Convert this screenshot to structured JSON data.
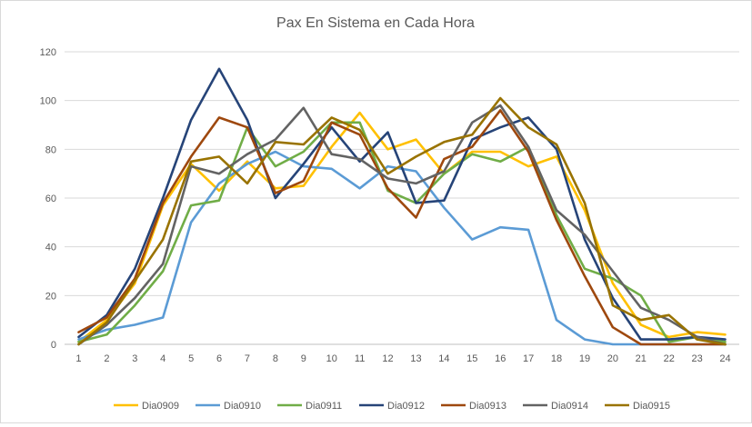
{
  "chart_data": {
    "type": "line",
    "title": "Pax En Sistema en Cada Hora",
    "xlabel": "",
    "ylabel": "",
    "x": [
      1,
      2,
      3,
      4,
      5,
      6,
      7,
      8,
      9,
      10,
      11,
      12,
      13,
      14,
      15,
      16,
      17,
      18,
      19,
      20,
      21,
      22,
      23,
      24
    ],
    "ylim": [
      0,
      120
    ],
    "yticks": [
      0,
      20,
      40,
      60,
      80,
      100,
      120
    ],
    "grid": true,
    "legend_position": "bottom",
    "series": [
      {
        "name": "Dia0909",
        "color": "#FFC000",
        "values": [
          1,
          10,
          25,
          57,
          74,
          63,
          75,
          64,
          65,
          81,
          95,
          80,
          84,
          70,
          79,
          79,
          73,
          77,
          55,
          25,
          8,
          3,
          5,
          4
        ]
      },
      {
        "name": "Dia0910",
        "color": "#5B9BD5",
        "values": [
          2,
          6,
          8,
          11,
          50,
          66,
          74,
          79,
          73,
          72,
          64,
          73,
          71,
          56,
          43,
          48,
          47,
          10,
          2,
          0,
          0,
          0,
          0,
          0
        ]
      },
      {
        "name": "Dia0911",
        "color": "#70AD47",
        "values": [
          1,
          4,
          16,
          30,
          57,
          59,
          89,
          73,
          79,
          91,
          91,
          63,
          58,
          70,
          78,
          75,
          81,
          53,
          31,
          27,
          20,
          1,
          3,
          1
        ]
      },
      {
        "name": "Dia0912",
        "color": "#264478",
        "values": [
          3,
          12,
          31,
          60,
          92,
          113,
          92,
          60,
          74,
          89,
          75,
          87,
          58,
          59,
          84,
          89,
          93,
          80,
          43,
          19,
          2,
          2,
          3,
          2
        ]
      },
      {
        "name": "Dia0913",
        "color": "#9E480E",
        "values": [
          5,
          11,
          27,
          58,
          77,
          93,
          89,
          62,
          67,
          91,
          86,
          64,
          52,
          76,
          81,
          96,
          79,
          51,
          28,
          7,
          0,
          0,
          0,
          0
        ]
      },
      {
        "name": "Dia0914",
        "color": "#636363",
        "values": [
          0,
          8,
          19,
          33,
          73,
          70,
          78,
          84,
          97,
          78,
          76,
          68,
          66,
          71,
          91,
          98,
          81,
          55,
          45,
          30,
          15,
          10,
          3,
          0
        ]
      },
      {
        "name": "Dia0915",
        "color": "#997300",
        "values": [
          0,
          9,
          26,
          43,
          75,
          77,
          66,
          83,
          82,
          93,
          88,
          70,
          77,
          83,
          86,
          101,
          89,
          82,
          58,
          16,
          10,
          12,
          2,
          0
        ]
      }
    ]
  }
}
